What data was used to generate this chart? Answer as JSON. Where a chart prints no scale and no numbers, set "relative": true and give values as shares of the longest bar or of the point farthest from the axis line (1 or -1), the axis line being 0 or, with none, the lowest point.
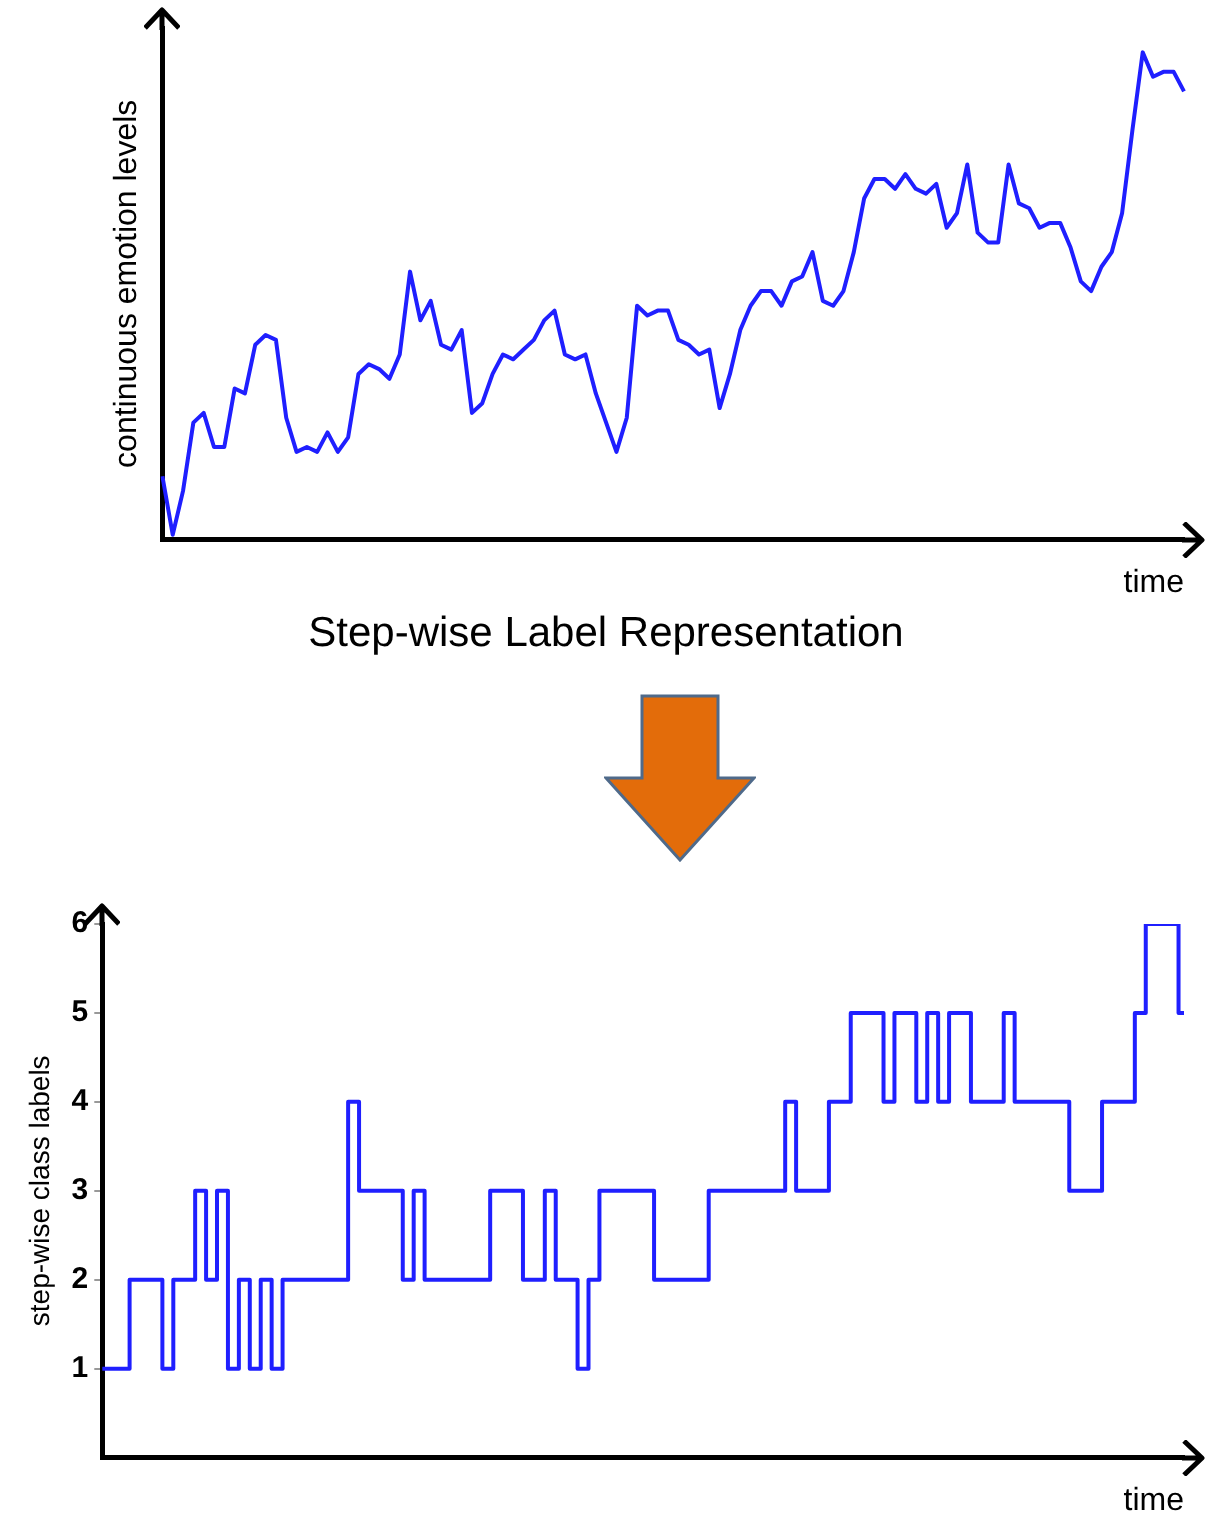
{
  "chart_data": [
    {
      "type": "line",
      "relative": true,
      "ylabel": "continuous emotion levels",
      "xlabel": "time",
      "color": "#1f1fff",
      "tick_labels": false,
      "categories": [
        null,
        null,
        null,
        null,
        null,
        null,
        null,
        null,
        null,
        null,
        null,
        null,
        null,
        null,
        null,
        null,
        null,
        null,
        null,
        null,
        null,
        null,
        null,
        null,
        null,
        null,
        null,
        null,
        null,
        null,
        null,
        null,
        null,
        null,
        null,
        null,
        null,
        null,
        null,
        null,
        null,
        null,
        null,
        null,
        null,
        null,
        null,
        null,
        null,
        null,
        null,
        null,
        null,
        null,
        null,
        null,
        null,
        null,
        null,
        null,
        null,
        null,
        null,
        null,
        null,
        null,
        null,
        null,
        null,
        null,
        null,
        null,
        null,
        null,
        null,
        null,
        null,
        null,
        null,
        null,
        null,
        null,
        null,
        null,
        null,
        null,
        null,
        null,
        null,
        null,
        null,
        null,
        null,
        null,
        null,
        null,
        null,
        null,
        null,
        null
      ],
      "values": [
        0.13,
        0.01,
        0.1,
        0.24,
        0.26,
        0.19,
        0.19,
        0.31,
        0.3,
        0.4,
        0.42,
        0.41,
        0.25,
        0.18,
        0.19,
        0.18,
        0.22,
        0.18,
        0.21,
        0.34,
        0.36,
        0.35,
        0.33,
        0.38,
        0.55,
        0.45,
        0.49,
        0.4,
        0.39,
        0.43,
        0.26,
        0.28,
        0.34,
        0.38,
        0.37,
        0.39,
        0.41,
        0.45,
        0.47,
        0.38,
        0.37,
        0.38,
        0.3,
        0.24,
        0.18,
        0.25,
        0.48,
        0.46,
        0.47,
        0.47,
        0.41,
        0.4,
        0.38,
        0.39,
        0.27,
        0.34,
        0.43,
        0.48,
        0.51,
        0.51,
        0.48,
        0.53,
        0.54,
        0.59,
        0.49,
        0.48,
        0.51,
        0.59,
        0.7,
        0.74,
        0.74,
        0.72,
        0.75,
        0.72,
        0.71,
        0.73,
        0.64,
        0.67,
        0.77,
        0.63,
        0.61,
        0.61,
        0.77,
        0.69,
        0.68,
        0.64,
        0.65,
        0.65,
        0.6,
        0.53,
        0.51,
        0.56,
        0.59,
        0.67,
        0.84,
        1.0,
        0.95,
        0.96,
        0.96,
        0.92
      ]
    },
    {
      "type": "step",
      "title": "Step-wise Label Representation",
      "ylabel": "step-wise class labels",
      "xlabel": "time",
      "color": "#1f1fff",
      "ylim": [
        0,
        6
      ],
      "yticks": [
        1,
        2,
        3,
        4,
        5,
        6
      ],
      "tick_labels": "y",
      "categories": [
        null,
        null,
        null,
        null,
        null,
        null,
        null,
        null,
        null,
        null,
        null,
        null,
        null,
        null,
        null,
        null,
        null,
        null,
        null,
        null,
        null,
        null,
        null,
        null,
        null,
        null,
        null,
        null,
        null,
        null,
        null,
        null,
        null,
        null,
        null,
        null,
        null,
        null,
        null,
        null,
        null,
        null,
        null,
        null,
        null,
        null,
        null,
        null,
        null,
        null,
        null,
        null,
        null,
        null,
        null,
        null,
        null,
        null,
        null,
        null,
        null,
        null,
        null,
        null,
        null,
        null,
        null,
        null,
        null,
        null,
        null,
        null,
        null,
        null,
        null,
        null,
        null,
        null,
        null,
        null,
        null,
        null,
        null,
        null,
        null,
        null,
        null,
        null,
        null,
        null,
        null,
        null,
        null,
        null,
        null,
        null,
        null,
        null,
        null,
        null
      ],
      "values": [
        1,
        1,
        1,
        2,
        2,
        2,
        1,
        2,
        2,
        3,
        2,
        3,
        1,
        2,
        1,
        2,
        1,
        2,
        2,
        2,
        2,
        2,
        2,
        4,
        3,
        3,
        3,
        3,
        2,
        3,
        2,
        2,
        2,
        2,
        2,
        2,
        3,
        3,
        3,
        2,
        2,
        3,
        2,
        2,
        1,
        2,
        3,
        3,
        3,
        3,
        3,
        2,
        2,
        2,
        2,
        2,
        3,
        3,
        3,
        3,
        3,
        3,
        3,
        4,
        3,
        3,
        3,
        4,
        4,
        5,
        5,
        5,
        4,
        5,
        5,
        4,
        5,
        4,
        5,
        5,
        4,
        4,
        4,
        5,
        4,
        4,
        4,
        4,
        4,
        3,
        3,
        3,
        4,
        4,
        4,
        5,
        6,
        6,
        6,
        5
      ]
    }
  ]
}
